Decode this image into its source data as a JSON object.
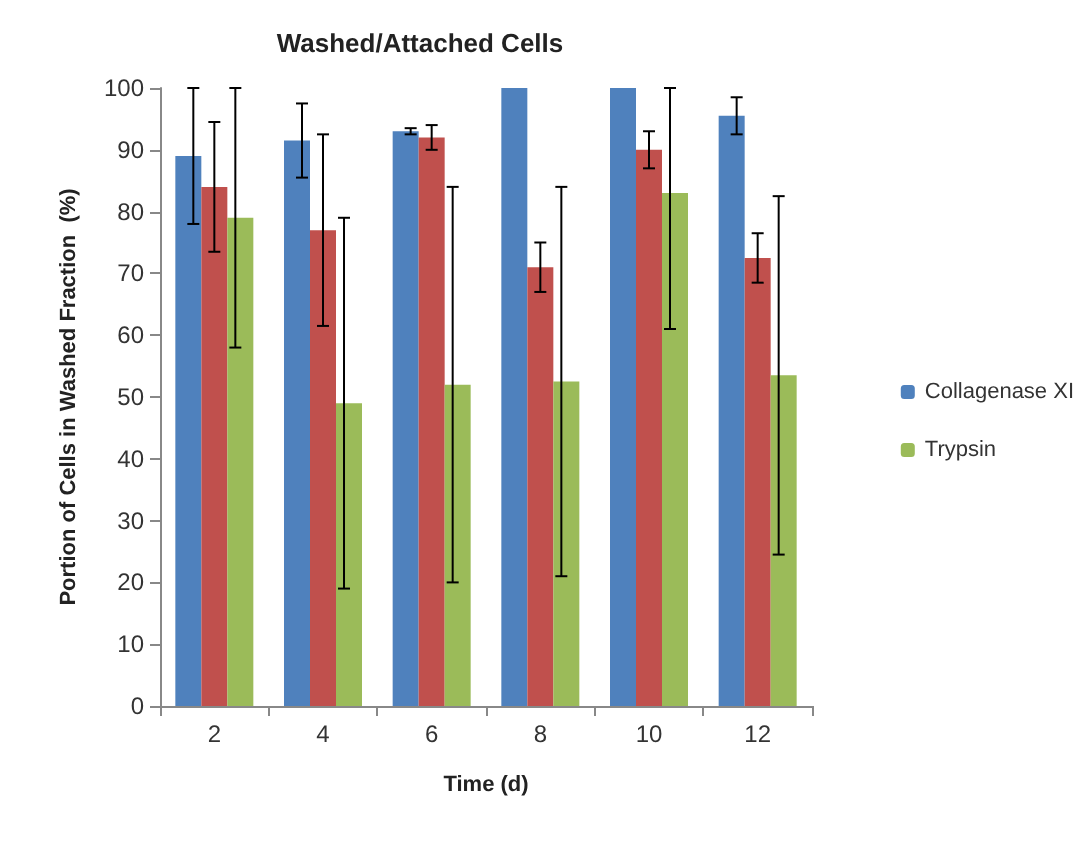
{
  "chart_data": {
    "type": "bar",
    "title": "Washed/Attached Cells",
    "xlabel": "Time (d)",
    "ylabel": "Portion of Cells in Washed Fraction  (%)",
    "categories": [
      "2",
      "4",
      "6",
      "8",
      "10",
      "12"
    ],
    "series": [
      {
        "name": "Collagenase XI",
        "color": "#4f81bd",
        "values": [
          89,
          91.5,
          93,
          100,
          100,
          95.5
        ],
        "errors": [
          11,
          6,
          0.5,
          null,
          null,
          3
        ]
      },
      {
        "color": "#c0504d",
        "values": [
          84,
          77,
          92,
          71,
          90,
          72.5
        ],
        "errors": [
          10.5,
          15.5,
          2,
          4,
          3,
          4
        ]
      },
      {
        "name": "Trypsin",
        "color": "#9bbb59",
        "values": [
          79,
          49,
          52,
          52.5,
          83,
          53.5
        ],
        "errors": [
          21,
          30,
          32,
          31.5,
          [
            61,
            100
          ],
          29
        ]
      }
    ],
    "ylim": [
      0,
      100
    ],
    "yticks": [
      0,
      10,
      20,
      30,
      40,
      50,
      60,
      70,
      80,
      90,
      100
    ],
    "grid": false,
    "legend": "right"
  }
}
